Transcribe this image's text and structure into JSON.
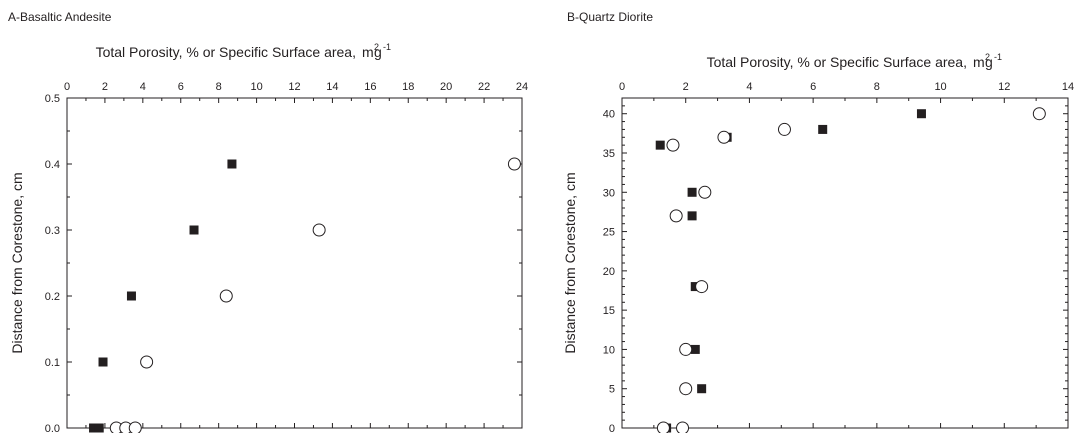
{
  "panel_labels": [
    "A-Basaltic Andesite",
    "B-Quartz Diorite"
  ],
  "chart_data": [
    {
      "type": "scatter",
      "title": "A-Basaltic Andesite",
      "xlabel": "Total Porosity, % or Specific Surface area,",
      "xlabel_unit_base": "m",
      "xlabel_unit_sup1": "2",
      "xlabel_unit_g": "g",
      "xlabel_unit_sup2": "-1",
      "ylabel": "Distance from Corestone, cm",
      "x_axis_position": "top",
      "xlim": [
        0,
        24
      ],
      "ylim": [
        0,
        0.5
      ],
      "x_ticks": [
        "0",
        "2",
        "4",
        "6",
        "8",
        "10",
        "12",
        "14",
        "16",
        "18",
        "20",
        "22",
        "24"
      ],
      "x_tick_values": [
        0,
        2,
        4,
        6,
        8,
        10,
        12,
        14,
        16,
        18,
        20,
        22,
        24
      ],
      "y_ticks": [
        "0.0",
        "0.1",
        "0.2",
        "0.3",
        "0.4",
        "0.5"
      ],
      "y_tick_values": [
        0,
        0.1,
        0.2,
        0.3,
        0.4,
        0.5
      ],
      "grid": false,
      "series": [
        {
          "marker": "filled-square",
          "points": [
            [
              1.4,
              0
            ],
            [
              1.7,
              0
            ],
            [
              1.9,
              0.1
            ],
            [
              3.4,
              0.2
            ],
            [
              6.7,
              0.3
            ],
            [
              8.7,
              0.4
            ]
          ]
        },
        {
          "marker": "open-circle",
          "points": [
            [
              2.6,
              0
            ],
            [
              3.1,
              0
            ],
            [
              3.6,
              0
            ],
            [
              4.2,
              0.1
            ],
            [
              8.4,
              0.2
            ],
            [
              13.3,
              0.3
            ],
            [
              23.6,
              0.4
            ]
          ]
        }
      ]
    },
    {
      "type": "scatter",
      "title": "B-Quartz Diorite",
      "xlabel": "Total Porosity, % or Specific Surface area,",
      "xlabel_unit_base": "m",
      "xlabel_unit_sup1": "2",
      "xlabel_unit_g": "g",
      "xlabel_unit_sup2": "-1",
      "ylabel": "Distance from Corestone, cm",
      "x_axis_position": "top",
      "xlim": [
        0,
        14
      ],
      "ylim": [
        0,
        42
      ],
      "x_ticks": [
        "0",
        "2",
        "4",
        "6",
        "8",
        "10",
        "12",
        "14"
      ],
      "x_tick_values": [
        0,
        2,
        4,
        6,
        8,
        10,
        12,
        14
      ],
      "y_ticks": [
        "0",
        "5",
        "10",
        "15",
        "20",
        "25",
        "30",
        "35",
        "40"
      ],
      "y_tick_values": [
        0,
        5,
        10,
        15,
        20,
        25,
        30,
        35,
        40
      ],
      "grid": false,
      "series": [
        {
          "marker": "filled-square",
          "points": [
            [
              1.4,
              0
            ],
            [
              2.5,
              5
            ],
            [
              2.3,
              10
            ],
            [
              2.3,
              18
            ],
            [
              2.2,
              27
            ],
            [
              2.2,
              30
            ],
            [
              1.2,
              36
            ],
            [
              3.3,
              37
            ],
            [
              6.3,
              38
            ],
            [
              9.4,
              40
            ]
          ]
        },
        {
          "marker": "open-circle",
          "points": [
            [
              1.3,
              0
            ],
            [
              1.9,
              0
            ],
            [
              2.0,
              5
            ],
            [
              2.0,
              10
            ],
            [
              2.5,
              18
            ],
            [
              1.7,
              27
            ],
            [
              2.6,
              30
            ],
            [
              1.6,
              36
            ],
            [
              3.2,
              37
            ],
            [
              5.1,
              38
            ],
            [
              13.1,
              40
            ]
          ]
        }
      ]
    }
  ]
}
